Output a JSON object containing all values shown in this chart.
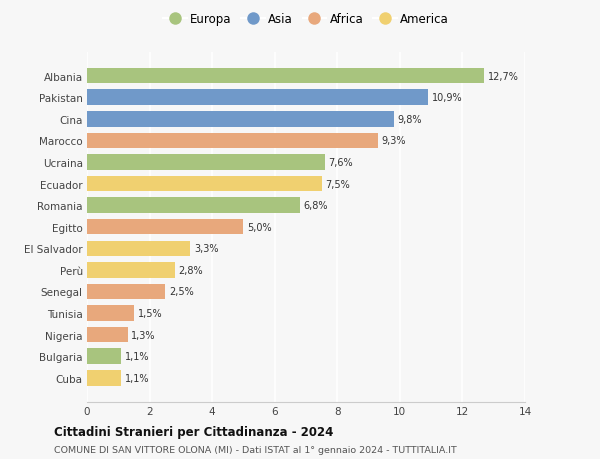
{
  "categories": [
    "Albania",
    "Pakistan",
    "Cina",
    "Marocco",
    "Ucraina",
    "Ecuador",
    "Romania",
    "Egitto",
    "El Salvador",
    "Perù",
    "Senegal",
    "Tunisia",
    "Nigeria",
    "Bulgaria",
    "Cuba"
  ],
  "values": [
    12.7,
    10.9,
    9.8,
    9.3,
    7.6,
    7.5,
    6.8,
    5.0,
    3.3,
    2.8,
    2.5,
    1.5,
    1.3,
    1.1,
    1.1
  ],
  "labels": [
    "12,7%",
    "10,9%",
    "9,8%",
    "9,3%",
    "7,6%",
    "7,5%",
    "6,8%",
    "5,0%",
    "3,3%",
    "2,8%",
    "2,5%",
    "1,5%",
    "1,3%",
    "1,1%",
    "1,1%"
  ],
  "continents": [
    "Europa",
    "Asia",
    "Asia",
    "Africa",
    "Europa",
    "America",
    "Europa",
    "Africa",
    "America",
    "America",
    "Africa",
    "Africa",
    "Africa",
    "Europa",
    "America"
  ],
  "continent_colors": {
    "Europa": "#a8c47e",
    "Asia": "#7099c9",
    "Africa": "#e8a87c",
    "America": "#f0d070"
  },
  "legend_order": [
    "Europa",
    "Asia",
    "Africa",
    "America"
  ],
  "title": "Cittadini Stranieri per Cittadinanza - 2024",
  "subtitle": "COMUNE DI SAN VITTORE OLONA (MI) - Dati ISTAT al 1° gennaio 2024 - TUTTITALIA.IT",
  "xlim": [
    0,
    14
  ],
  "xticks": [
    0,
    2,
    4,
    6,
    8,
    10,
    12,
    14
  ],
  "background_color": "#f7f7f7",
  "grid_color": "#ffffff",
  "bar_height": 0.72
}
